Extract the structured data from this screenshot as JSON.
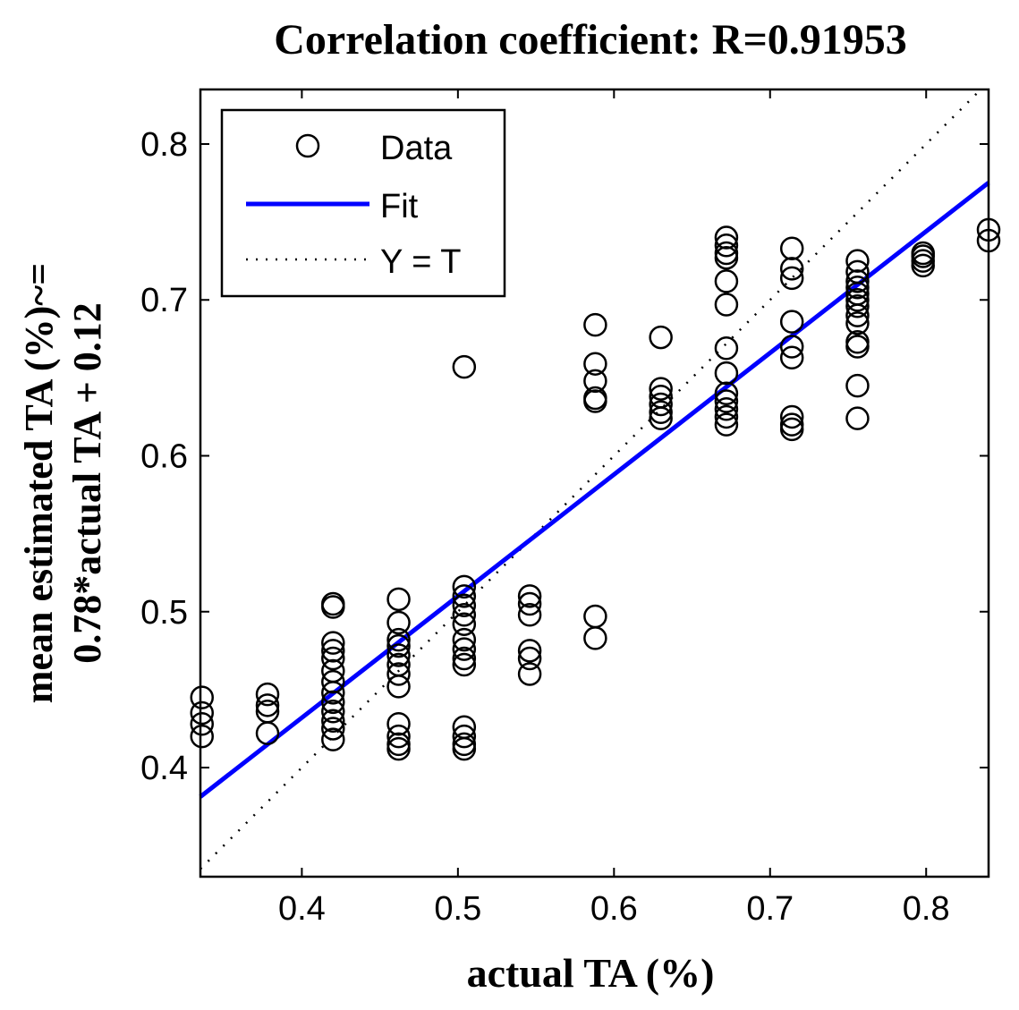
{
  "chart_data": {
    "type": "scatter",
    "title": "Correlation coefficient: R=0.91953",
    "xlabel": "actual TA (%)",
    "ylabel_line1": "mean estimated TA (%)~=",
    "ylabel_line2": "0.78*actual TA + 0.12",
    "xlim": [
      0.335,
      0.84
    ],
    "ylim": [
      0.33,
      0.835
    ],
    "xticks": [
      0.4,
      0.5,
      0.6,
      0.7,
      0.8
    ],
    "yticks": [
      0.4,
      0.5,
      0.6,
      0.7,
      0.8
    ],
    "xtick_labels": [
      "0.4",
      "0.5",
      "0.6",
      "0.7",
      "0.8"
    ],
    "ytick_labels": [
      "0.4",
      "0.5",
      "0.6",
      "0.7",
      "0.8"
    ],
    "grid": false,
    "legend": {
      "position": "top-left",
      "entries": [
        {
          "label": "Data",
          "style": "circle-marker"
        },
        {
          "label": "Fit",
          "style": "solid-line"
        },
        {
          "label": "Y = T",
          "style": "dotted-line"
        }
      ]
    },
    "fit": {
      "slope": 0.78,
      "intercept": 0.12,
      "color": "#0000ff"
    },
    "identity": {
      "color": "#000000"
    },
    "series": [
      {
        "name": "Data",
        "marker": "circle",
        "points": [
          [
            0.336,
            0.445
          ],
          [
            0.336,
            0.435
          ],
          [
            0.336,
            0.428
          ],
          [
            0.336,
            0.42
          ],
          [
            0.378,
            0.447
          ],
          [
            0.378,
            0.44
          ],
          [
            0.378,
            0.436
          ],
          [
            0.378,
            0.422
          ],
          [
            0.42,
            0.505
          ],
          [
            0.42,
            0.503
          ],
          [
            0.42,
            0.48
          ],
          [
            0.42,
            0.475
          ],
          [
            0.42,
            0.47
          ],
          [
            0.42,
            0.462
          ],
          [
            0.42,
            0.455
          ],
          [
            0.42,
            0.448
          ],
          [
            0.42,
            0.442
          ],
          [
            0.42,
            0.436
          ],
          [
            0.42,
            0.43
          ],
          [
            0.42,
            0.425
          ],
          [
            0.42,
            0.418
          ],
          [
            0.462,
            0.508
          ],
          [
            0.462,
            0.493
          ],
          [
            0.462,
            0.482
          ],
          [
            0.462,
            0.478
          ],
          [
            0.462,
            0.472
          ],
          [
            0.462,
            0.466
          ],
          [
            0.462,
            0.46
          ],
          [
            0.462,
            0.452
          ],
          [
            0.462,
            0.428
          ],
          [
            0.462,
            0.42
          ],
          [
            0.462,
            0.415
          ],
          [
            0.462,
            0.412
          ],
          [
            0.504,
            0.657
          ],
          [
            0.504,
            0.516
          ],
          [
            0.504,
            0.51
          ],
          [
            0.504,
            0.504
          ],
          [
            0.504,
            0.498
          ],
          [
            0.504,
            0.492
          ],
          [
            0.504,
            0.482
          ],
          [
            0.504,
            0.476
          ],
          [
            0.504,
            0.47
          ],
          [
            0.504,
            0.466
          ],
          [
            0.504,
            0.426
          ],
          [
            0.504,
            0.42
          ],
          [
            0.504,
            0.415
          ],
          [
            0.504,
            0.412
          ],
          [
            0.546,
            0.51
          ],
          [
            0.546,
            0.505
          ],
          [
            0.546,
            0.498
          ],
          [
            0.546,
            0.475
          ],
          [
            0.546,
            0.47
          ],
          [
            0.546,
            0.46
          ],
          [
            0.588,
            0.684
          ],
          [
            0.588,
            0.659
          ],
          [
            0.588,
            0.648
          ],
          [
            0.588,
            0.637
          ],
          [
            0.588,
            0.635
          ],
          [
            0.588,
            0.497
          ],
          [
            0.588,
            0.483
          ],
          [
            0.63,
            0.676
          ],
          [
            0.63,
            0.643
          ],
          [
            0.63,
            0.638
          ],
          [
            0.63,
            0.633
          ],
          [
            0.63,
            0.628
          ],
          [
            0.63,
            0.624
          ],
          [
            0.672,
            0.74
          ],
          [
            0.672,
            0.735
          ],
          [
            0.672,
            0.73
          ],
          [
            0.672,
            0.727
          ],
          [
            0.672,
            0.712
          ],
          [
            0.672,
            0.697
          ],
          [
            0.672,
            0.669
          ],
          [
            0.672,
            0.653
          ],
          [
            0.672,
            0.64
          ],
          [
            0.672,
            0.635
          ],
          [
            0.672,
            0.63
          ],
          [
            0.672,
            0.625
          ],
          [
            0.672,
            0.62
          ],
          [
            0.714,
            0.733
          ],
          [
            0.714,
            0.72
          ],
          [
            0.714,
            0.714
          ],
          [
            0.714,
            0.686
          ],
          [
            0.714,
            0.67
          ],
          [
            0.714,
            0.663
          ],
          [
            0.714,
            0.625
          ],
          [
            0.714,
            0.62
          ],
          [
            0.714,
            0.617
          ],
          [
            0.756,
            0.725
          ],
          [
            0.756,
            0.718
          ],
          [
            0.756,
            0.712
          ],
          [
            0.756,
            0.708
          ],
          [
            0.756,
            0.704
          ],
          [
            0.756,
            0.7
          ],
          [
            0.756,
            0.696
          ],
          [
            0.756,
            0.69
          ],
          [
            0.756,
            0.685
          ],
          [
            0.756,
            0.673
          ],
          [
            0.756,
            0.67
          ],
          [
            0.756,
            0.645
          ],
          [
            0.756,
            0.624
          ],
          [
            0.798,
            0.73
          ],
          [
            0.798,
            0.728
          ],
          [
            0.798,
            0.725
          ],
          [
            0.798,
            0.722
          ],
          [
            0.84,
            0.745
          ],
          [
            0.84,
            0.738
          ]
        ]
      }
    ]
  }
}
